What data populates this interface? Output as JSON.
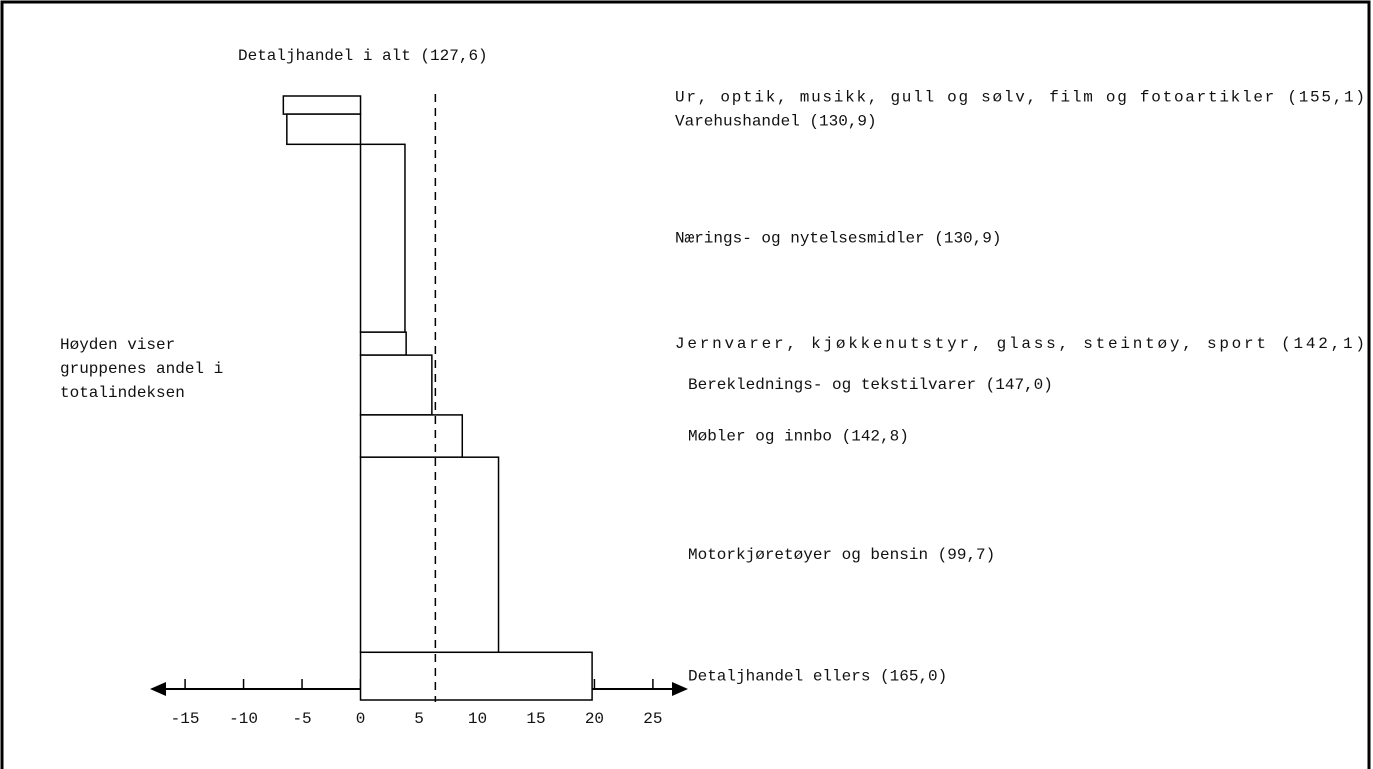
{
  "chart_data": {
    "type": "bar",
    "orientation": "horizontal",
    "reference_label": "Detaljhandel i alt (127,6)",
    "reference_value": 6.4,
    "note_lines": [
      "Høyden viser",
      "gruppenes andel i",
      "totalindeksen"
    ],
    "categories": [
      "Ur, optik, musikk, gull og sølv, film og fotoartikler (155,1)",
      "Varehushandel (130,9)",
      "Nærings- og nytelsesmidler (130,9)",
      "Jernvarer, kjøkkenutstyr, glass, steintøy, sport (142,1)",
      "Bereklednings- og tekstilvarer (147,0)",
      "Møbler og innbo (142,8)",
      "Motorkjøretøyer og bensin (99,7)",
      "Detaljhandel ellers (165,0)"
    ],
    "values": [
      -6.6,
      -6.3,
      3.8,
      3.9,
      6.1,
      8.7,
      11.8,
      19.8
    ],
    "shares": [
      3.0,
      5.0,
      31.1,
      3.8,
      9.9,
      7.0,
      32.3,
      7.9
    ],
    "color": "#ffffff",
    "xlim": [
      -18,
      28
    ],
    "xticks": [
      -15,
      -10,
      -5,
      0,
      5,
      10,
      15,
      20,
      25
    ],
    "grid": false
  }
}
